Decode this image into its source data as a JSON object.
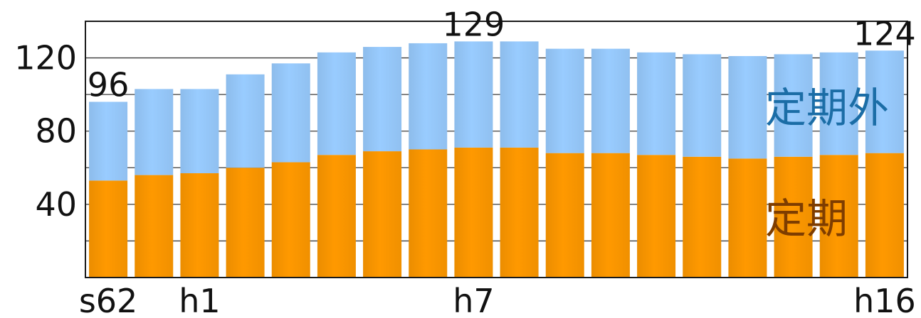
{
  "chart_data": {
    "type": "bar",
    "stacked": true,
    "categories": [
      "s62",
      "",
      "h1",
      "",
      "",
      "",
      "",
      "",
      "h7",
      "",
      "",
      "",
      "",
      "",
      "",
      "",
      "",
      "h16"
    ],
    "series": [
      {
        "name": "定期",
        "values": [
          53,
          56,
          57,
          60,
          63,
          67,
          69,
          70,
          71,
          71,
          68,
          68,
          67,
          66,
          65,
          66,
          67,
          68
        ],
        "color": "#ff9900",
        "label_color": "#7e3d00"
      },
      {
        "name": "定期外",
        "values": [
          43,
          47,
          46,
          51,
          54,
          56,
          57,
          58,
          58,
          58,
          57,
          57,
          56,
          56,
          56,
          56,
          56,
          56
        ],
        "color": "#99ccff",
        "label_color": "#1b6da6"
      }
    ],
    "data_labels": [
      {
        "category": "s62",
        "text": "96"
      },
      {
        "category": "h7",
        "text": "129"
      },
      {
        "category": "h16",
        "text": "124"
      }
    ],
    "y_ticks": [
      40,
      80,
      120
    ],
    "grid_values": [
      20,
      40,
      60,
      80,
      100,
      120
    ],
    "ylim": [
      0,
      140
    ],
    "grid": true,
    "legend_placement": "inside-right"
  }
}
